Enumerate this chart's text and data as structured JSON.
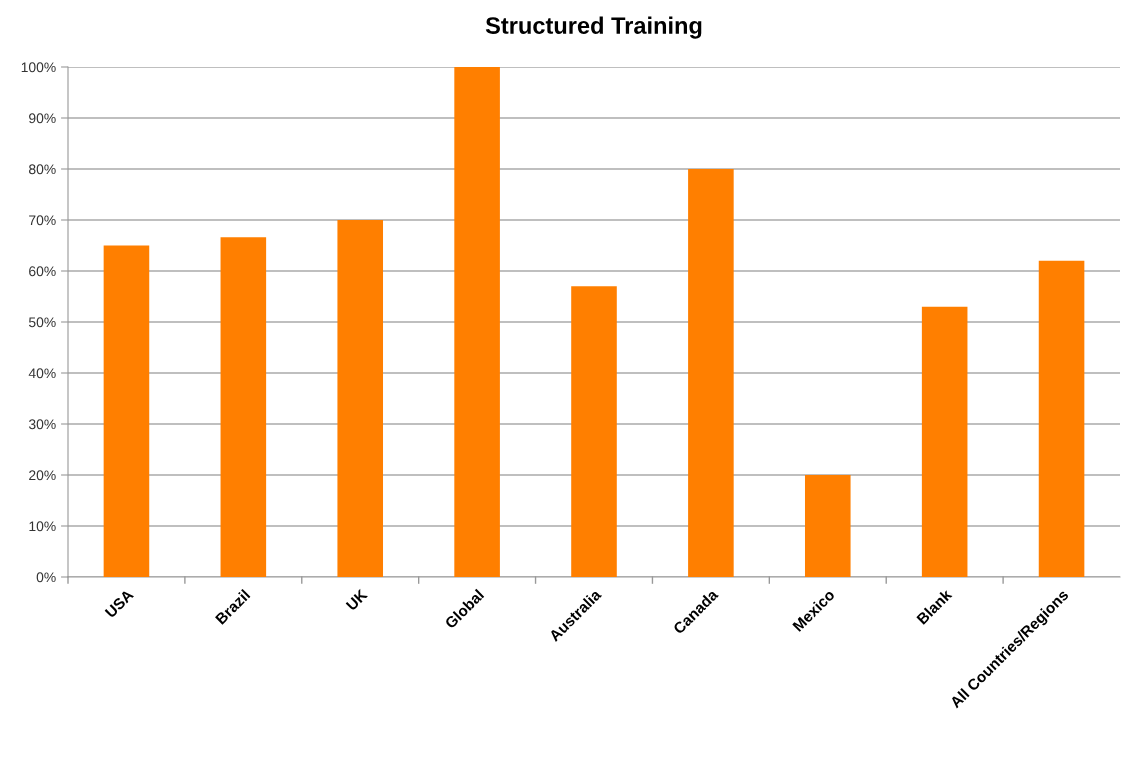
{
  "chart_data": {
    "type": "bar",
    "title": "Structured Training",
    "categories": [
      "USA",
      "Brazil",
      "UK",
      "Global",
      "Australia",
      "Canada",
      "Mexico",
      "Blank",
      "All Countries/Regions"
    ],
    "values": [
      65,
      66.6,
      70,
      100,
      57,
      80,
      20,
      53,
      62
    ],
    "color": "#ff7f00",
    "ylim": [
      0,
      100
    ],
    "yticks": [
      {
        "value": 0,
        "label": "0%"
      },
      {
        "value": 10,
        "label": "10%"
      },
      {
        "value": 20,
        "label": "20%"
      },
      {
        "value": 30,
        "label": "30%"
      },
      {
        "value": 40,
        "label": "40%"
      },
      {
        "value": 50,
        "label": "50%"
      },
      {
        "value": 60,
        "label": "60%"
      },
      {
        "value": 70,
        "label": "70%"
      },
      {
        "value": 80,
        "label": "80%"
      },
      {
        "value": 90,
        "label": "90%"
      },
      {
        "value": 100,
        "label": "100%"
      }
    ],
    "grid": "y"
  }
}
